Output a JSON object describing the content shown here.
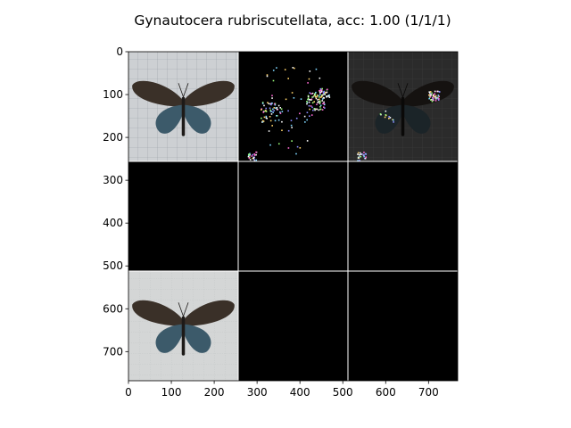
{
  "title": "Gynautocera rubriscutellata, acc: 1.00 (1/1/1)",
  "colors": {
    "background": "#ffffff",
    "tile_black": "#000000",
    "grid_separator": "#ffffff",
    "photo_background": "#cfd2d4",
    "butterfly_wing": "#3a3028",
    "butterfly_wing_blue": "#3c5a6a"
  },
  "chart_data": {
    "type": "image-grid",
    "title": "Gynautocera rubriscutellata, acc: 1.00 (1/1/1)",
    "xlim": [
      0,
      768
    ],
    "ylim": [
      768,
      0
    ],
    "x_ticks": [
      0,
      100,
      200,
      300,
      400,
      500,
      600,
      700
    ],
    "y_ticks": [
      0,
      100,
      200,
      300,
      400,
      500,
      600,
      700
    ],
    "grid": {
      "rows": 3,
      "cols": 3,
      "tile_size": 256
    },
    "tiles": [
      {
        "row": 0,
        "col": 0,
        "content": "photo-butterfly"
      },
      {
        "row": 0,
        "col": 1,
        "content": "noise-saliency"
      },
      {
        "row": 0,
        "col": 2,
        "content": "dark-butterfly-overlay"
      },
      {
        "row": 1,
        "col": 0,
        "content": "black"
      },
      {
        "row": 1,
        "col": 1,
        "content": "black"
      },
      {
        "row": 1,
        "col": 2,
        "content": "black"
      },
      {
        "row": 2,
        "col": 0,
        "content": "photo-butterfly"
      },
      {
        "row": 2,
        "col": 1,
        "content": "black"
      },
      {
        "row": 2,
        "col": 2,
        "content": "black"
      }
    ]
  }
}
